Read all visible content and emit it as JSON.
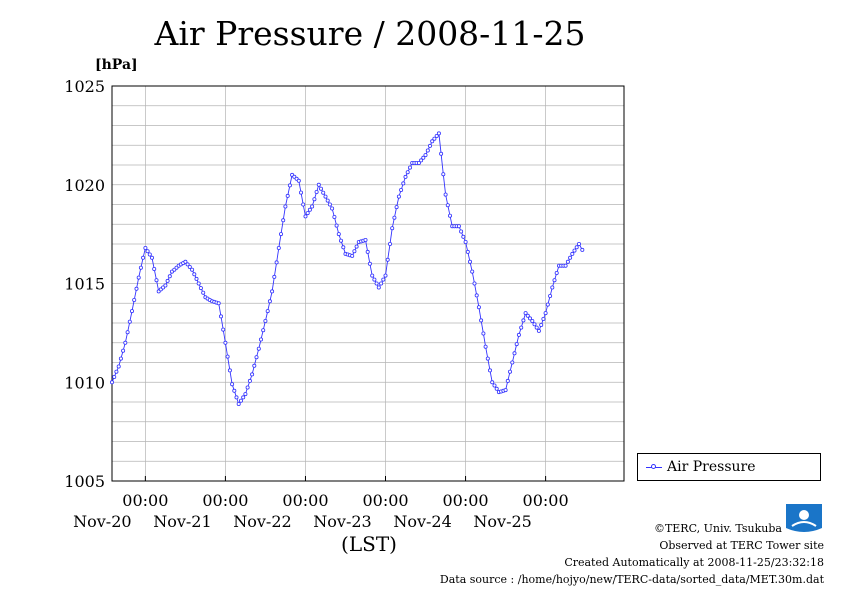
{
  "chart_data": {
    "type": "line",
    "title": "Air Pressure / 2008-11-25",
    "ylabel": "[hPa]",
    "xlabel": "(LST)",
    "ylim": [
      1005,
      1025
    ],
    "yticks": [
      1005,
      1010,
      1015,
      1020,
      1025
    ],
    "xlim": [
      "2008-11-19 14:00",
      "2008-11-25 23:30"
    ],
    "xticks": [
      {
        "time": "00:00",
        "date": "Nov-20"
      },
      {
        "time": "00:00",
        "date": "Nov-21"
      },
      {
        "time": "00:00",
        "date": "Nov-22"
      },
      {
        "time": "00:00",
        "date": "Nov-23"
      },
      {
        "time": "00:00",
        "date": "Nov-24"
      },
      {
        "time": "00:00",
        "date": "Nov-25"
      }
    ],
    "grid": true,
    "legend_position": "right",
    "series": [
      {
        "name": "Air Pressure",
        "color": "#3333ff",
        "marker": "open-circle",
        "points": [
          [
            "2008-11-19 14:00",
            1010.0
          ],
          [
            "2008-11-19 16:00",
            1010.8
          ],
          [
            "2008-11-19 18:00",
            1012.0
          ],
          [
            "2008-11-19 20:00",
            1013.6
          ],
          [
            "2008-11-19 22:00",
            1015.3
          ],
          [
            "2008-11-20 00:00",
            1016.8
          ],
          [
            "2008-11-20 02:00",
            1016.3
          ],
          [
            "2008-11-20 04:00",
            1014.6
          ],
          [
            "2008-11-20 06:00",
            1014.9
          ],
          [
            "2008-11-20 08:00",
            1015.6
          ],
          [
            "2008-11-20 10:00",
            1015.9
          ],
          [
            "2008-11-20 12:00",
            1016.1
          ],
          [
            "2008-11-20 14:00",
            1015.7
          ],
          [
            "2008-11-20 16:00",
            1015.0
          ],
          [
            "2008-11-20 18:00",
            1014.3
          ],
          [
            "2008-11-20 20:00",
            1014.1
          ],
          [
            "2008-11-20 22:00",
            1014.0
          ],
          [
            "2008-11-21 00:00",
            1012.0
          ],
          [
            "2008-11-21 02:00",
            1009.9
          ],
          [
            "2008-11-21 04:00",
            1008.9
          ],
          [
            "2008-11-21 06:00",
            1009.4
          ],
          [
            "2008-11-21 08:00",
            1010.4
          ],
          [
            "2008-11-21 10:00",
            1011.7
          ],
          [
            "2008-11-21 12:00",
            1013.1
          ],
          [
            "2008-11-21 14:00",
            1014.6
          ],
          [
            "2008-11-21 16:00",
            1016.8
          ],
          [
            "2008-11-21 18:00",
            1018.9
          ],
          [
            "2008-11-21 20:00",
            1020.5
          ],
          [
            "2008-11-21 22:00",
            1020.2
          ],
          [
            "2008-11-22 00:00",
            1018.4
          ],
          [
            "2008-11-22 02:00",
            1018.9
          ],
          [
            "2008-11-22 04:00",
            1020.0
          ],
          [
            "2008-11-22 06:00",
            1019.4
          ],
          [
            "2008-11-22 08:00",
            1018.8
          ],
          [
            "2008-11-22 10:00",
            1017.5
          ],
          [
            "2008-11-22 12:00",
            1016.5
          ],
          [
            "2008-11-22 14:00",
            1016.4
          ],
          [
            "2008-11-22 16:00",
            1017.1
          ],
          [
            "2008-11-22 18:00",
            1017.2
          ],
          [
            "2008-11-22 20:00",
            1015.4
          ],
          [
            "2008-11-22 22:00",
            1014.8
          ],
          [
            "2008-11-23 00:00",
            1015.4
          ],
          [
            "2008-11-23 02:00",
            1017.8
          ],
          [
            "2008-11-23 04:00",
            1019.4
          ],
          [
            "2008-11-23 06:00",
            1020.4
          ],
          [
            "2008-11-23 08:00",
            1021.1
          ],
          [
            "2008-11-23 10:00",
            1021.1
          ],
          [
            "2008-11-23 12:00",
            1021.5
          ],
          [
            "2008-11-23 14:00",
            1022.2
          ],
          [
            "2008-11-23 16:00",
            1022.6
          ],
          [
            "2008-11-23 18:00",
            1019.5
          ],
          [
            "2008-11-23 20:00",
            1017.9
          ],
          [
            "2008-11-23 22:00",
            1017.9
          ],
          [
            "2008-11-24 00:00",
            1017.1
          ],
          [
            "2008-11-24 02:00",
            1015.6
          ],
          [
            "2008-11-24 04:00",
            1013.8
          ],
          [
            "2008-11-24 06:00",
            1011.8
          ],
          [
            "2008-11-24 08:00",
            1010.0
          ],
          [
            "2008-11-24 10:00",
            1009.5
          ],
          [
            "2008-11-24 12:00",
            1009.6
          ],
          [
            "2008-11-24 14:00",
            1011.0
          ],
          [
            "2008-11-24 16:00",
            1012.4
          ],
          [
            "2008-11-24 18:00",
            1013.5
          ],
          [
            "2008-11-24 20:00",
            1013.1
          ],
          [
            "2008-11-24 22:00",
            1012.6
          ],
          [
            "2008-11-25 00:00",
            1013.5
          ],
          [
            "2008-11-25 02:00",
            1014.8
          ],
          [
            "2008-11-25 04:00",
            1015.9
          ],
          [
            "2008-11-25 06:00",
            1015.9
          ],
          [
            "2008-11-25 08:00",
            1016.5
          ],
          [
            "2008-11-25 10:00",
            1017.0
          ],
          [
            "2008-11-25 11:00",
            1016.7
          ]
        ]
      }
    ]
  },
  "legend": {
    "label": "Air Pressure"
  },
  "footer": {
    "copyright": "©TERC, Univ. Tsukuba",
    "observed": "Observed at TERC Tower site",
    "created": "Created Automatically at 2008-11-25/23:32:18",
    "source": "Data source : /home/hojyo/new/TERC-data/sorted_data/MET.30m.dat"
  },
  "logo": {
    "text": "TERC",
    "color": "#1a75c8"
  }
}
